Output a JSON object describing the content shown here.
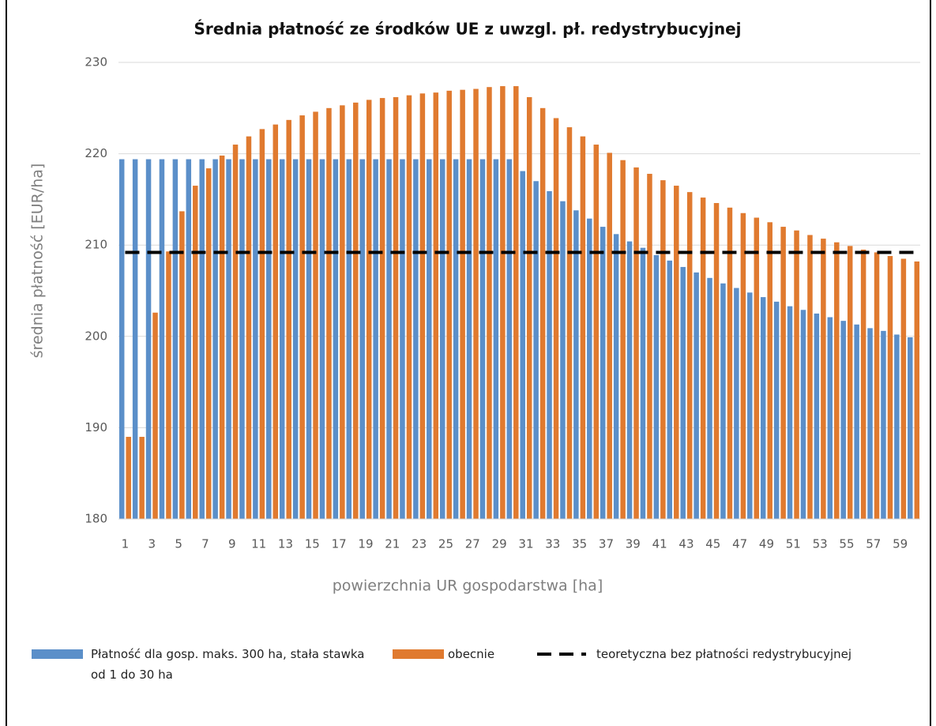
{
  "chart_data": {
    "type": "bar",
    "title": "Średnia płatność ze środków UE z uwzgl. pł. redystrybucyjnej",
    "x_label": "powierzchnia UR gospodarstwa [ha]",
    "y_label": "średnia płatność [EUR/ha]",
    "categories": [
      1,
      null,
      3,
      null,
      5,
      null,
      7,
      null,
      9,
      null,
      11,
      null,
      13,
      null,
      15,
      null,
      17,
      null,
      19,
      null,
      21,
      null,
      23,
      null,
      25,
      null,
      27,
      null,
      29,
      null,
      31,
      null,
      33,
      null,
      35,
      null,
      37,
      null,
      39,
      null,
      41,
      null,
      43,
      null,
      45,
      null,
      47,
      null,
      49,
      null,
      51,
      null,
      53,
      null,
      55,
      null,
      57,
      null,
      59,
      null
    ],
    "series": [
      {
        "name": "Płatność dla gosp. maks. 300 ha, stała stawka od 1 do 30 ha",
        "type": "bar",
        "color": "#5b8fc9",
        "values": [
          219.4,
          219.4,
          219.4,
          219.4,
          219.4,
          219.4,
          219.4,
          219.4,
          219.4,
          219.4,
          219.4,
          219.4,
          219.4,
          219.4,
          219.4,
          219.4,
          219.4,
          219.4,
          219.4,
          219.4,
          219.4,
          219.4,
          219.4,
          219.4,
          219.4,
          219.4,
          219.4,
          219.4,
          219.4,
          219.4,
          218.1,
          217.0,
          215.9,
          214.8,
          213.8,
          212.9,
          212.0,
          211.2,
          210.4,
          209.7,
          208.9,
          208.3,
          207.6,
          207.0,
          206.4,
          205.8,
          205.3,
          204.8,
          204.3,
          203.8,
          203.3,
          202.9,
          202.5,
          202.1,
          201.7,
          201.3,
          200.9,
          200.6,
          200.2,
          199.9
        ]
      },
      {
        "name": "obecnie",
        "type": "bar",
        "color": "#e07a2f",
        "values": [
          189,
          189,
          202.6,
          209.3,
          213.7,
          216.5,
          218.4,
          219.8,
          221,
          221.9,
          222.7,
          223.2,
          223.7,
          224.2,
          224.6,
          225,
          225.3,
          225.6,
          225.9,
          226.1,
          226.2,
          226.4,
          226.6,
          226.7,
          226.9,
          227.0,
          227.1,
          227.3,
          227.4,
          227.4,
          226.2,
          225,
          223.9,
          222.9,
          221.9,
          221,
          220.1,
          219.3,
          218.5,
          217.8,
          217.1,
          216.5,
          215.8,
          215.2,
          214.6,
          214.1,
          213.5,
          213.0,
          212.5,
          212.0,
          211.6,
          211.1,
          210.7,
          210.3,
          209.9,
          209.5,
          209.2,
          208.8,
          208.5,
          208.2
        ]
      },
      {
        "name": "teoretyczna bez płatności redystrybucyjnej",
        "type": "line",
        "dash": "dashed",
        "color": "#000000",
        "values": [
          209.2,
          209.2,
          209.2,
          209.2,
          209.2,
          209.2,
          209.2,
          209.2,
          209.2,
          209.2,
          209.2,
          209.2,
          209.2,
          209.2,
          209.2,
          209.2,
          209.2,
          209.2,
          209.2,
          209.2,
          209.2,
          209.2,
          209.2,
          209.2,
          209.2,
          209.2,
          209.2,
          209.2,
          209.2,
          209.2,
          209.2,
          209.2,
          209.2,
          209.2,
          209.2,
          209.2,
          209.2,
          209.2,
          209.2,
          209.2,
          209.2,
          209.2,
          209.2,
          209.2,
          209.2,
          209.2,
          209.2,
          209.2,
          209.2,
          209.2,
          209.2,
          209.2,
          209.2,
          209.2,
          209.2,
          209.2,
          209.2,
          209.2,
          209.2,
          209.2
        ]
      }
    ],
    "ylim": [
      180,
      230
    ],
    "yticks": [
      180,
      190,
      200,
      210,
      220,
      230
    ],
    "grid": true,
    "legend": "bottom"
  }
}
